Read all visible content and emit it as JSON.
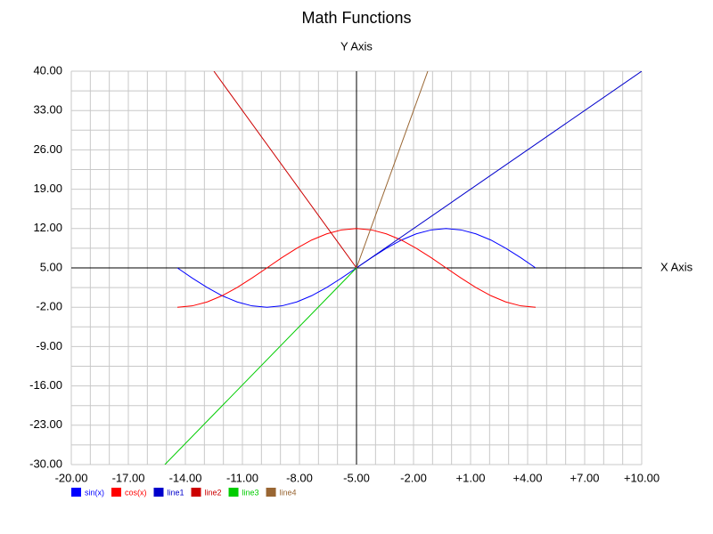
{
  "chart_data": {
    "type": "line",
    "title": "Math Functions",
    "y_axis_title": "Y Axis",
    "x_axis_title": "X Axis",
    "xlim": [
      -20,
      10
    ],
    "ylim": [
      -30,
      40
    ],
    "xticks": [
      {
        "value": -20,
        "label": "-20.00"
      },
      {
        "value": -17,
        "label": "-17.00"
      },
      {
        "value": -14,
        "label": "-14.00"
      },
      {
        "value": -11,
        "label": "-11.00"
      },
      {
        "value": -8,
        "label": "-8.00"
      },
      {
        "value": -5,
        "label": "-5.00"
      },
      {
        "value": -2,
        "label": "-2.00"
      },
      {
        "value": 1,
        "label": "+1.00"
      },
      {
        "value": 4,
        "label": "+4.00"
      },
      {
        "value": 7,
        "label": "+7.00"
      },
      {
        "value": 10,
        "label": "+10.00"
      }
    ],
    "yticks": [
      {
        "value": 40,
        "label": "40.00"
      },
      {
        "value": 33,
        "label": "33.00"
      },
      {
        "value": 26,
        "label": "26.00"
      },
      {
        "value": 19,
        "label": "19.00"
      },
      {
        "value": 12,
        "label": "12.00"
      },
      {
        "value": 5,
        "label": "5.00"
      },
      {
        "value": -2,
        "label": "-2.00"
      },
      {
        "value": -9,
        "label": "-9.00"
      },
      {
        "value": -16,
        "label": "-16.00"
      },
      {
        "value": -23,
        "label": "-23.00"
      },
      {
        "value": -30,
        "label": "-30.00"
      }
    ],
    "xgrid": [
      -20,
      -19,
      -18,
      -17,
      -16,
      -15,
      -14,
      -13,
      -12,
      -11,
      -10,
      -9,
      -8,
      -7,
      -6,
      -5,
      -4,
      -3,
      -2,
      -1,
      0,
      1,
      2,
      3,
      4,
      5,
      6,
      7,
      8,
      9,
      10
    ],
    "ygrid": [
      -30,
      -26.5,
      -23,
      -19.5,
      -16,
      -12.5,
      -9,
      -5.5,
      -2,
      1.5,
      5,
      8.5,
      12,
      15.5,
      19,
      22.5,
      26,
      29.5,
      33,
      36.5,
      40
    ],
    "grid": true,
    "axis_cross": {
      "x": -5,
      "y": 5
    },
    "series": [
      {
        "name": "sin(x)",
        "color": "#0000ff",
        "x": [
          -14.42,
          -13.64,
          -12.85,
          -12.07,
          -11.28,
          -10.5,
          -9.71,
          -8.93,
          -8.14,
          -7.36,
          -6.57,
          -5.79,
          -5,
          -4.21,
          -3.43,
          -2.64,
          -1.86,
          -1.07,
          -0.29,
          0.5,
          1.28,
          2.07,
          2.85,
          3.64,
          4.42
        ],
        "values": [
          5,
          3.19,
          1.5,
          0.05,
          -1.06,
          -1.76,
          -2,
          -1.76,
          -1.06,
          0.05,
          1.5,
          3.19,
          5,
          6.81,
          8.5,
          9.95,
          11.06,
          11.76,
          12,
          11.76,
          11.06,
          9.95,
          8.5,
          6.81,
          5
        ]
      },
      {
        "name": "cos(x)",
        "color": "#ff0000",
        "x": [
          -14.42,
          -13.64,
          -12.85,
          -12.07,
          -11.28,
          -10.5,
          -9.71,
          -8.93,
          -8.14,
          -7.36,
          -6.57,
          -5.79,
          -5,
          -4.21,
          -3.43,
          -2.64,
          -1.86,
          -1.07,
          -0.29,
          0.5,
          1.28,
          2.07,
          2.85,
          3.64,
          4.42
        ],
        "values": [
          -2,
          -1.76,
          -1.06,
          0.05,
          1.5,
          3.19,
          5,
          6.81,
          8.5,
          9.95,
          11.06,
          11.76,
          12,
          11.76,
          11.06,
          9.95,
          8.5,
          6.81,
          5,
          3.19,
          1.5,
          0.05,
          -1.06,
          -1.76,
          -2
        ]
      },
      {
        "name": "line1",
        "color": "#0000cc",
        "x": [
          -5,
          10
        ],
        "values": [
          5,
          40
        ]
      },
      {
        "name": "line2",
        "color": "#cc0000",
        "x": [
          -12.5,
          -5
        ],
        "values": [
          40,
          5
        ]
      },
      {
        "name": "line3",
        "color": "#00cc00",
        "x": [
          -5,
          -15.08
        ],
        "values": [
          5,
          -30
        ]
      },
      {
        "name": "line4",
        "color": "#996633",
        "x": [
          -5,
          -1.25
        ],
        "values": [
          5,
          40
        ]
      }
    ]
  }
}
